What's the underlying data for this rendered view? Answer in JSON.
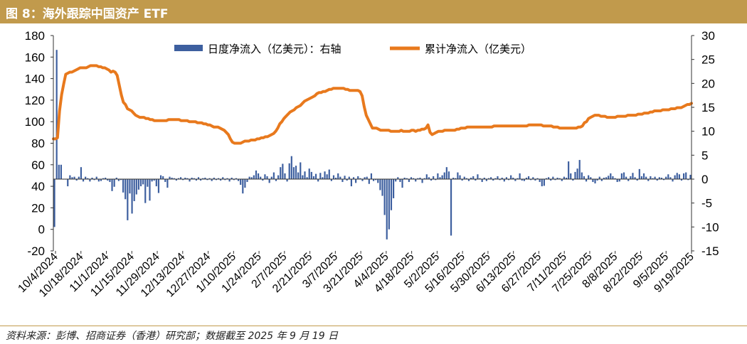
{
  "header": {
    "title": "图 8：海外跟踪中国资产 ETF"
  },
  "source": "资料来源：彭博、招商证券（香港）研究部；数据截至 2025 年 9 月 19 日",
  "chart_data": {
    "type": "bar+line",
    "title": "",
    "xlabel": "",
    "y_left": {
      "min": -20,
      "max": 180,
      "step": 20
    },
    "y_right": {
      "min": -15,
      "max": 30,
      "step": 5
    },
    "x_ticks": [
      "10/4/2024",
      "10/18/2024",
      "11/1/2024",
      "11/15/2024",
      "11/29/2024",
      "12/13/2024",
      "12/27/2024",
      "1/10/2025",
      "1/24/2025",
      "2/7/2025",
      "2/21/2025",
      "3/7/2025",
      "3/21/2025",
      "4/4/2025",
      "4/18/2025",
      "5/2/2025",
      "5/16/2025",
      "5/30/2025",
      "6/13/2025",
      "6/27/2025",
      "7/11/2025",
      "7/25/2025",
      "8/8/2025",
      "8/22/2025",
      "9/5/2025",
      "9/19/2025"
    ],
    "legend": {
      "placement": "top-center"
    },
    "series": [
      {
        "name": "日度净流入（亿美元）：右轴",
        "type": "bar",
        "axis": "right",
        "color": "#3d5f9f",
        "values": [
          -10,
          27,
          3,
          3,
          0,
          0,
          -1.5,
          0.8,
          0.4,
          0.5,
          -0.3,
          0.5,
          2.5,
          -0.5,
          0.5,
          0.2,
          -0.5,
          0.3,
          -0.2,
          0.5,
          -0.5,
          -0.4,
          0.2,
          0.3,
          -0.3,
          -0.6,
          -2.5,
          -1.6,
          0.3,
          -0.4,
          -0.2,
          -2.8,
          -4.2,
          -8.6,
          -3,
          -7.2,
          -4.6,
          -3.2,
          -2.2,
          -1.5,
          -1.1,
          -5,
          -1.6,
          -4.5,
          -0.5,
          -0.3,
          -1.5,
          -2.9,
          0.8,
          0.6,
          -0.6,
          -1.8,
          0.5,
          0.3,
          0.2,
          -0.3,
          0.2,
          0.4,
          -0.2,
          0.3,
          0.2,
          -0.5,
          0.3,
          0.2,
          -0.3,
          0.4,
          -0.3,
          0.2,
          0.3,
          -0.2,
          0.2,
          -0.4,
          0.3,
          -0.2,
          0.2,
          -0.3,
          0.4,
          -0.2,
          0.2,
          -0.5,
          0.3,
          -0.2,
          0.2,
          -0.4,
          -1.2,
          -3,
          -1.8,
          -0.6,
          0.5,
          0.4,
          0.8,
          1.8,
          1.2,
          0.5,
          -0.3,
          1.0,
          0.6,
          -0.8,
          0.5,
          1.4,
          -0.4,
          0.8,
          2.5,
          3.2,
          1.2,
          -0.5,
          3.3,
          4.8,
          2.5,
          2.8,
          1.4,
          3.5,
          0.8,
          1.6,
          0.4,
          2.2,
          1.5,
          0.6,
          1.1,
          -0.5,
          1.3,
          0.4,
          1.6,
          1.0,
          2.0,
          -0.4,
          0.8,
          0.3,
          1.2,
          0.5,
          -0.6,
          0.7,
          -0.3,
          0.5,
          -1.5,
          0.4,
          -0.8,
          0.6,
          0.2,
          -0.4,
          0.4,
          0.5,
          -1.0,
          1.2,
          -0.4,
          -0.2,
          -0.8,
          -2.3,
          -3.5,
          -7.5,
          -12.6,
          -10.5,
          -6.5,
          -4,
          -0.5,
          0.4,
          -0.6,
          -1.8,
          0.3,
          0.2,
          -0.6,
          0.4,
          0.2,
          -0.5,
          0.2,
          0.3,
          -0.8,
          0.2,
          1.0,
          0.4,
          -0.3,
          0.6,
          -0.2,
          1.2,
          0.4,
          0.8,
          1.4,
          2.5,
          1.6,
          -11.8,
          0.3,
          0.2,
          1.4,
          0.8,
          -0.3,
          0.5,
          0.2,
          -0.4,
          0.3,
          0.6,
          -0.3,
          1.0,
          0.2,
          -0.6,
          0.3,
          -0.4,
          0.2,
          0.4,
          -0.3,
          0.2,
          0.6,
          -0.2,
          0.3,
          -0.5,
          0.4,
          -0.2,
          0.8,
          0.3,
          -0.4,
          0.2,
          1.2,
          -0.3,
          -0.4,
          0.3,
          0.6,
          -0.2,
          0.4,
          -0.3,
          0.2,
          -0.6,
          -1.5,
          -1.4,
          0.2,
          0.4,
          -0.3,
          0.5,
          -0.2,
          0.3,
          0.2,
          -0.4,
          0.5,
          0.3,
          3.7,
          1.2,
          -0.3,
          1.5,
          2.2,
          4.0,
          1.4,
          0.6,
          -0.5,
          0.8,
          0.4,
          -0.6,
          -0.9,
          -0.3,
          0.5,
          -0.4,
          0.3,
          0.4,
          0.7,
          1.2,
          0.6,
          0.2,
          -0.6,
          -0.5,
          1.2,
          1.4,
          0.5,
          -0.4,
          0.6,
          1.3,
          0.4,
          -0.3,
          2.1,
          0.6,
          1.2,
          0.5,
          -0.4,
          0.6,
          0.2,
          0.5,
          -0.3,
          0.4,
          0.3,
          -0.2,
          0.5,
          1.0,
          0.4,
          -0.5,
          0.8,
          1.3,
          1.0,
          -0.3,
          1.2,
          1.4,
          -0.2,
          0.9
        ]
      },
      {
        "name": "累计净流入（亿美元）",
        "type": "line",
        "axis": "left",
        "color": "#e8791d",
        "values": [
          84,
          84,
          85,
          110,
          125,
          135,
          144,
          145,
          146,
          146,
          147,
          148,
          149,
          150,
          150,
          150,
          150,
          151,
          152,
          152,
          152,
          152,
          151,
          151,
          150,
          150,
          149,
          148,
          146,
          147,
          146,
          143,
          134,
          125,
          118,
          116,
          112,
          111,
          110,
          108,
          106,
          105,
          104,
          104,
          104,
          103,
          103,
          102,
          102,
          101,
          101,
          101,
          101,
          101,
          101,
          101,
          102,
          102,
          102,
          102,
          102,
          102,
          101,
          101,
          101,
          101,
          100,
          100,
          100,
          100,
          99,
          99,
          99,
          98,
          98,
          97,
          97,
          96,
          95,
          95,
          95,
          94,
          93,
          92,
          90,
          88,
          84,
          81,
          80,
          80,
          80,
          80,
          81,
          82,
          82,
          82,
          83,
          83,
          83,
          84,
          84,
          85,
          85,
          86,
          86,
          87,
          88,
          89,
          91,
          94,
          98,
          100,
          103,
          105,
          107,
          109,
          110,
          111,
          113,
          114,
          115,
          117,
          119,
          120,
          121,
          122,
          123,
          124,
          126,
          127,
          127,
          128,
          128,
          129,
          130,
          130,
          131,
          131,
          131,
          131,
          131,
          131,
          130,
          130,
          129,
          129,
          129,
          129,
          129,
          128,
          124,
          114,
          106,
          102,
          98,
          94,
          94,
          94,
          93,
          92,
          92,
          92,
          92,
          92,
          91,
          91,
          91,
          91,
          91,
          92,
          91,
          91,
          91,
          91,
          92,
          92,
          91,
          92,
          92,
          93,
          93,
          94,
          97,
          90,
          88,
          89,
          90,
          91,
          91,
          91,
          92,
          92,
          92,
          92,
          92,
          92,
          93,
          93,
          94,
          94,
          94,
          95,
          95,
          95,
          95,
          95,
          95,
          95,
          95,
          95,
          95,
          95,
          95,
          95,
          96,
          96,
          96,
          96,
          96,
          96,
          96,
          96,
          96,
          96,
          96,
          96,
          96,
          96,
          96,
          96,
          96,
          97,
          97,
          97,
          97,
          97,
          97,
          97,
          96,
          96,
          96,
          96,
          96,
          95,
          95,
          95,
          94,
          94,
          94,
          94,
          94,
          94,
          94,
          94,
          94,
          95,
          95,
          96,
          99,
          100,
          103,
          104,
          105,
          106,
          106,
          106,
          105,
          105,
          105,
          104,
          104,
          104,
          104,
          104,
          105,
          105,
          105,
          105,
          105,
          106,
          106,
          106,
          106,
          106,
          107,
          107,
          107,
          108,
          108,
          108,
          109,
          109,
          110,
          110,
          110,
          110,
          111,
          111,
          111,
          111,
          112,
          112,
          112,
          113,
          113,
          113,
          114,
          115,
          116,
          116,
          117
        ]
      }
    ]
  }
}
